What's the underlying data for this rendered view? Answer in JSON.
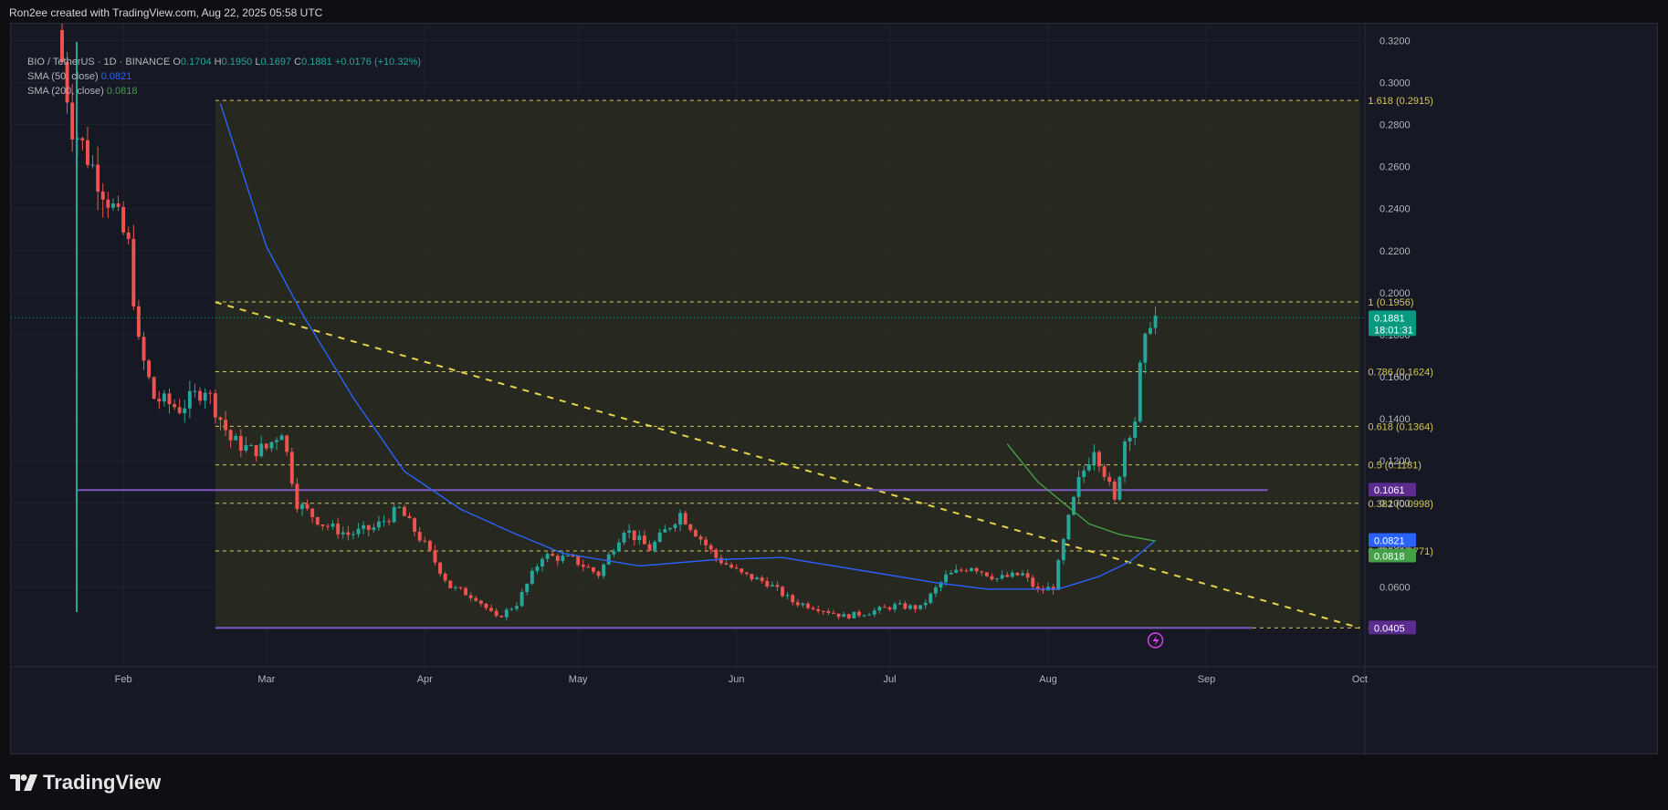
{
  "attribution": "Ron2ee created with TradingView.com, Aug 22, 2025 05:58 UTC",
  "legend": {
    "symbol": "BIO / TetherUS · 1D · BINANCE",
    "o_label": "O",
    "o": "0.1704",
    "h_label": "H",
    "h": "0.1950",
    "l_label": "L",
    "l": "0.1697",
    "c_label": "C",
    "c": "0.1881",
    "change": "+0.0176 (+10.32%)",
    "sma50_label": "SMA (50, close)",
    "sma50_value": "0.0821",
    "sma200_label": "SMA (200, close)",
    "sma200_value": "0.0818"
  },
  "logo_text": "TradingView",
  "colors": {
    "up": "#26a69a",
    "down": "#ef5350",
    "sma50": "#2962ff",
    "sma200": "#43a047",
    "fib": "#d6c65c",
    "support": "#7e57c2",
    "zone": "#2a2c1e"
  },
  "chart_data": {
    "type": "candlestick",
    "symbol": "BIO/USDT",
    "timeframe": "1D",
    "exchange": "BINANCE",
    "ylim": [
      0.022,
      0.328
    ],
    "y_ticks": [
      0.06,
      0.08,
      0.1,
      0.12,
      0.14,
      0.16,
      0.18,
      0.2,
      0.22,
      0.24,
      0.26,
      0.28,
      0.3,
      0.32
    ],
    "y_tick_labels": [
      "0.0600",
      "0.0800",
      "0.1000",
      "0.1200",
      "0.1400",
      "0.1600",
      "0.1800",
      "0.2000",
      "0.2200",
      "0.2400",
      "0.2600",
      "0.2800",
      "0.3000",
      "0.3200"
    ],
    "x_labels": [
      "Feb",
      "Mar",
      "Apr",
      "May",
      "Jun",
      "Jul",
      "Aug",
      "Sep",
      "Oct"
    ],
    "x_label_dates": [
      "2025-02-01",
      "2025-03-01",
      "2025-04-01",
      "2025-05-01",
      "2025-06-01",
      "2025-07-01",
      "2025-08-01",
      "2025-09-01",
      "2025-10-01"
    ],
    "x_range": [
      "2025-01-10",
      "2025-10-02"
    ],
    "grid": true,
    "price_key_points": [
      [
        "2025-01-20",
        0.325
      ],
      [
        "2025-01-23",
        0.28
      ],
      [
        "2025-01-27",
        0.26
      ],
      [
        "2025-01-31",
        0.24
      ],
      [
        "2025-02-03",
        0.222
      ],
      [
        "2025-02-05",
        0.175
      ],
      [
        "2025-02-08",
        0.15
      ],
      [
        "2025-02-13",
        0.145
      ],
      [
        "2025-02-18",
        0.155
      ],
      [
        "2025-02-23",
        0.13
      ],
      [
        "2025-02-27",
        0.125
      ],
      [
        "2025-03-02",
        0.126
      ],
      [
        "2025-03-05",
        0.135
      ],
      [
        "2025-03-08",
        0.1
      ],
      [
        "2025-03-13",
        0.09
      ],
      [
        "2025-03-18",
        0.085
      ],
      [
        "2025-03-23",
        0.088
      ],
      [
        "2025-03-28",
        0.097
      ],
      [
        "2025-04-02",
        0.08
      ],
      [
        "2025-04-07",
        0.06
      ],
      [
        "2025-04-12",
        0.055
      ],
      [
        "2025-04-16",
        0.045
      ],
      [
        "2025-04-20",
        0.052
      ],
      [
        "2025-04-25",
        0.075
      ],
      [
        "2025-05-01",
        0.073
      ],
      [
        "2025-05-06",
        0.066
      ],
      [
        "2025-05-11",
        0.088
      ],
      [
        "2025-05-16",
        0.078
      ],
      [
        "2025-05-22",
        0.095
      ],
      [
        "2025-05-29",
        0.074
      ],
      [
        "2025-06-03",
        0.066
      ],
      [
        "2025-06-08",
        0.062
      ],
      [
        "2025-06-13",
        0.053
      ],
      [
        "2025-06-18",
        0.05
      ],
      [
        "2025-06-23",
        0.046
      ],
      [
        "2025-06-28",
        0.048
      ],
      [
        "2025-07-03",
        0.051
      ],
      [
        "2025-07-08",
        0.05
      ],
      [
        "2025-07-13",
        0.065
      ],
      [
        "2025-07-18",
        0.07
      ],
      [
        "2025-07-23",
        0.064
      ],
      [
        "2025-07-28",
        0.066
      ],
      [
        "2025-07-31",
        0.058
      ],
      [
        "2025-08-03",
        0.06
      ],
      [
        "2025-08-06",
        0.092
      ],
      [
        "2025-08-08",
        0.11
      ],
      [
        "2025-08-11",
        0.127
      ],
      [
        "2025-08-13",
        0.115
      ],
      [
        "2025-08-15",
        0.1
      ],
      [
        "2025-08-17",
        0.13
      ],
      [
        "2025-08-19",
        0.14
      ],
      [
        "2025-08-20",
        0.163
      ],
      [
        "2025-08-22",
        0.1881
      ]
    ],
    "sma50": [
      [
        "2025-02-20",
        0.29
      ],
      [
        "2025-03-01",
        0.222
      ],
      [
        "2025-03-08",
        0.19
      ],
      [
        "2025-03-18",
        0.15
      ],
      [
        "2025-03-28",
        0.115
      ],
      [
        "2025-04-08",
        0.097
      ],
      [
        "2025-04-18",
        0.086
      ],
      [
        "2025-04-28",
        0.076
      ],
      [
        "2025-05-13",
        0.07
      ],
      [
        "2025-05-28",
        0.073
      ],
      [
        "2025-06-10",
        0.074
      ],
      [
        "2025-06-25",
        0.068
      ],
      [
        "2025-07-10",
        0.062
      ],
      [
        "2025-07-20",
        0.059
      ],
      [
        "2025-08-03",
        0.059
      ],
      [
        "2025-08-11",
        0.065
      ],
      [
        "2025-08-17",
        0.072
      ],
      [
        "2025-08-22",
        0.0821
      ]
    ],
    "sma200": [
      [
        "2025-07-24",
        0.128
      ],
      [
        "2025-07-30",
        0.11
      ],
      [
        "2025-08-04",
        0.1
      ],
      [
        "2025-08-09",
        0.09
      ],
      [
        "2025-08-15",
        0.085
      ],
      [
        "2025-08-22",
        0.0818
      ]
    ],
    "support_lines": [
      {
        "price": 0.1061,
        "from": "2025-01-23",
        "to": "2025-09-13"
      },
      {
        "price": 0.0405,
        "from": "2025-02-19",
        "to": "2025-09-10"
      }
    ],
    "fib_levels": [
      {
        "ratio": "1.618",
        "price": 0.2915,
        "label": "1.618 (0.2915)"
      },
      {
        "ratio": "1",
        "price": 0.1956,
        "label": "1 (0.1956)"
      },
      {
        "ratio": "0.786",
        "price": 0.1624,
        "label": "0.786 (0.1624)"
      },
      {
        "ratio": "0.618",
        "price": 0.1364,
        "label": "0.618 (0.1364)"
      },
      {
        "ratio": "0.5",
        "price": 0.1181,
        "label": "0.5 (0.1181)"
      },
      {
        "ratio": "0.382",
        "price": 0.0998,
        "label": "0.382 (0.0998)"
      },
      {
        "ratio": "0.236",
        "price": 0.0771,
        "label": "0.236 (0.0771)"
      },
      {
        "ratio": "0",
        "price": 0.0405,
        "label": "0 (0.0405)"
      }
    ],
    "fib_range": [
      "2025-02-19",
      "2025-10-01"
    ],
    "trendline": {
      "from": [
        "2025-02-19",
        0.1955
      ],
      "to": [
        "2025-10-01",
        0.0405
      ]
    },
    "price_tags": [
      {
        "price": 0.1881,
        "label": "0.1881",
        "sublabel": "18:01:31",
        "color": "#089981"
      },
      {
        "price": 0.1061,
        "label": "0.1061",
        "color": "#5b2c8e"
      },
      {
        "price": 0.0821,
        "label": "0.0821",
        "color": "#2962ff"
      },
      {
        "price": 0.0818,
        "label": "0.0818",
        "color": "#43a047"
      },
      {
        "price": 0.0405,
        "label": "0.0405",
        "color": "#5b2c8e"
      }
    ]
  }
}
